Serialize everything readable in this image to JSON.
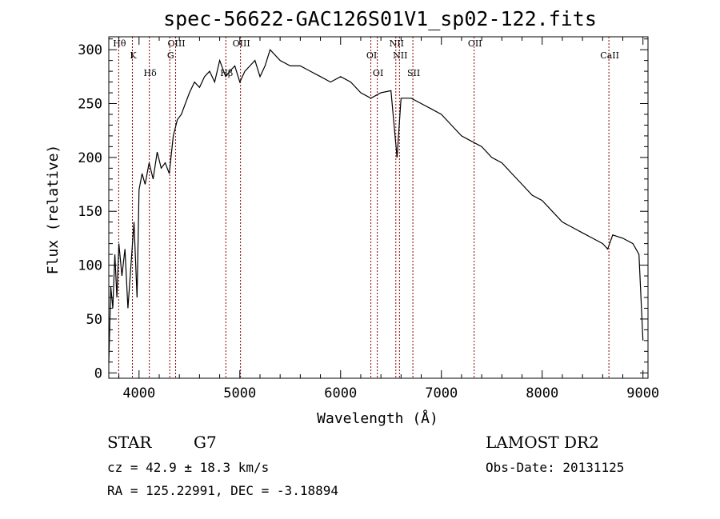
{
  "chart_data": {
    "type": "line",
    "title": "spec-56622-GAC126S01V1_sp02-122.fits",
    "xlabel": "Wavelength (Å)",
    "ylabel": "Flux (relative)",
    "xlim": [
      3700,
      9050
    ],
    "ylim": [
      -5,
      312
    ],
    "xticks": [
      4000,
      5000,
      6000,
      7000,
      8000,
      9000
    ],
    "yticks": [
      0,
      50,
      100,
      150,
      200,
      250,
      300
    ],
    "grid": false,
    "series": [
      {
        "x": [
          3700,
          3720,
          3740,
          3760,
          3780,
          3800,
          3830,
          3860,
          3890,
          3920,
          3950,
          3980,
          4000,
          4030,
          4060,
          4100,
          4140,
          4180,
          4220,
          4260,
          4300,
          4340,
          4380,
          4420,
          4460,
          4500,
          4550,
          4600,
          4650,
          4700,
          4750,
          4800,
          4860,
          4900,
          4950,
          5000,
          5050,
          5100,
          5150,
          5200,
          5250,
          5300,
          5400,
          5500,
          5600,
          5700,
          5800,
          5900,
          6000,
          6100,
          6200,
          6300,
          6400,
          6500,
          6560,
          6600,
          6700,
          6800,
          6900,
          7000,
          7100,
          7200,
          7300,
          7400,
          7500,
          7600,
          7700,
          7800,
          7900,
          8000,
          8100,
          8200,
          8300,
          8400,
          8500,
          8600,
          8650,
          8700,
          8800,
          8900,
          8960,
          9000
        ],
        "y": [
          10,
          80,
          60,
          110,
          70,
          120,
          90,
          115,
          60,
          100,
          140,
          70,
          170,
          185,
          175,
          195,
          180,
          205,
          190,
          195,
          185,
          220,
          235,
          240,
          250,
          260,
          270,
          265,
          275,
          280,
          270,
          290,
          275,
          280,
          285,
          270,
          280,
          285,
          290,
          275,
          285,
          300,
          290,
          285,
          285,
          280,
          275,
          270,
          275,
          270,
          260,
          255,
          260,
          262,
          200,
          255,
          255,
          250,
          245,
          240,
          230,
          220,
          215,
          210,
          200,
          195,
          185,
          175,
          165,
          160,
          150,
          140,
          135,
          130,
          125,
          120,
          115,
          128,
          125,
          120,
          110,
          30
        ]
      }
    ],
    "lines": [
      {
        "name": "Hθ",
        "x": 3798
      },
      {
        "name": "K",
        "x": 3934
      },
      {
        "name": "Hδ",
        "x": 4102
      },
      {
        "name": "OIII",
        "x": 4363
      },
      {
        "name": "G",
        "x": 4305
      },
      {
        "name": "Hβ",
        "x": 4861
      },
      {
        "name": "OIII",
        "x": 5007
      },
      {
        "name": "OI",
        "x": 6300
      },
      {
        "name": "OI",
        "x": 6364
      },
      {
        "name": "NII",
        "x": 6548
      },
      {
        "name": "NII",
        "x": 6584
      },
      {
        "name": "SII",
        "x": 6717
      },
      {
        "name": "OII",
        "x": 7325
      },
      {
        "name": "CaII",
        "x": 8662
      }
    ]
  },
  "info": {
    "object_class": "STAR",
    "subclass": "G7",
    "survey": "LAMOST DR2",
    "redshift_line": "cz = 42.9 ± 18.3 km/s",
    "obs_date_line": "Obs-Date: 20131125",
    "coords_line": "RA = 125.22991, DEC =  -3.18894"
  },
  "colors": {
    "spectrum": "#000000",
    "line_marker": "#8b0000",
    "background": "#ffffff"
  }
}
